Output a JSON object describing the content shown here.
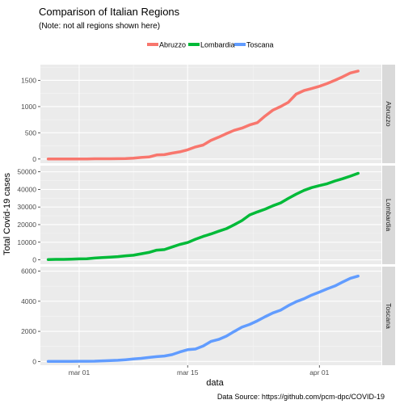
{
  "chart_data": {
    "type": "line",
    "title": "Comparison of Italian Regions",
    "subtitle": "(Note: not all regions shown here)",
    "xlabel": "data",
    "ylabel": "Total Covid-19 cases",
    "caption": "Data Source: https://github.com/pcm-dpc/COVID-19",
    "legend_position": "top",
    "grid": true,
    "x_ticks": [
      "mar 01",
      "mar 15",
      "apr 01"
    ],
    "x_tick_days": [
      5,
      19,
      36
    ],
    "xlim": [
      0,
      44
    ],
    "x": [
      1,
      2,
      3,
      4,
      5,
      6,
      7,
      8,
      9,
      10,
      11,
      12,
      13,
      14,
      15,
      16,
      17,
      18,
      19,
      20,
      21,
      22,
      23,
      24,
      25,
      26,
      27,
      28,
      29,
      30,
      31,
      32,
      33,
      34,
      35,
      36,
      37,
      38,
      39,
      40,
      41
    ],
    "panels": [
      {
        "name": "Abruzzo",
        "color": "#F8766D",
        "ylim": [
          -80,
          1800
        ],
        "yticks": [
          0,
          500,
          1000,
          1500
        ],
        "tick_labels": [
          "0",
          "500",
          "1000",
          "1500"
        ],
        "values": [
          0,
          0,
          0,
          0,
          1,
          2,
          5,
          5,
          5,
          6,
          9,
          17,
          30,
          38,
          77,
          84,
          112,
          137,
          176,
          229,
          267,
          355,
          416,
          484,
          547,
          589,
          651,
          693,
          820,
          932,
          1000,
          1082,
          1237,
          1305,
          1344,
          1387,
          1440,
          1501,
          1568,
          1642,
          1679
        ]
      },
      {
        "name": "Lombardia",
        "color": "#00BA38",
        "ylim": [
          -2500,
          53500
        ],
        "yticks": [
          0,
          10000,
          20000,
          30000,
          40000,
          50000
        ],
        "tick_labels": [
          "0",
          "10000",
          "20000",
          "30000",
          "40000",
          "50000"
        ],
        "values": [
          172,
          240,
          258,
          403,
          531,
          615,
          984,
          1254,
          1520,
          1820,
          2251,
          2612,
          3420,
          4189,
          5469,
          5791,
          7280,
          8725,
          9820,
          11685,
          13272,
          14649,
          16220,
          17713,
          19884,
          22264,
          25515,
          27206,
          28761,
          30703,
          32346,
          34889,
          37298,
          39415,
          41007,
          42161,
          43208,
          44773,
          46065,
          47520,
          49118
        ]
      },
      {
        "name": "Toscana",
        "color": "#619CFF",
        "ylim": [
          -250,
          6300
        ],
        "yticks": [
          0,
          2000,
          4000,
          6000
        ],
        "tick_labels": [
          "0",
          "2000",
          "4000",
          "6000"
        ],
        "values": [
          0,
          2,
          2,
          2,
          11,
          13,
          19,
          38,
          61,
          79,
          113,
          166,
          208,
          264,
          320,
          364,
          454,
          630,
          781,
          825,
          1024,
          1330,
          1460,
          1685,
          1990,
          2277,
          2461,
          2699,
          2972,
          3226,
          3406,
          3712,
          3972,
          4161,
          4412,
          4608,
          4822,
          5018,
          5273,
          5529,
          5671
        ]
      }
    ]
  }
}
